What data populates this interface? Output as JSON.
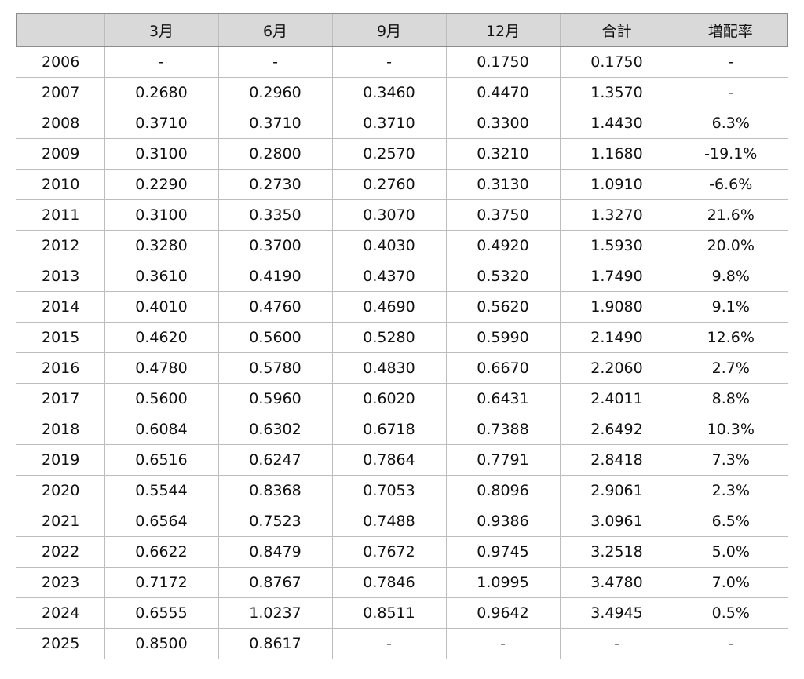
{
  "table": {
    "headers": [
      "",
      "3月",
      "6月",
      "9月",
      "12月",
      "合計",
      "増配率"
    ],
    "rows": [
      [
        "2006",
        "-",
        "-",
        "-",
        "0.1750",
        "0.1750",
        "-"
      ],
      [
        "2007",
        "0.2680",
        "0.2960",
        "0.3460",
        "0.4470",
        "1.3570",
        "-"
      ],
      [
        "2008",
        "0.3710",
        "0.3710",
        "0.3710",
        "0.3300",
        "1.4430",
        "6.3%"
      ],
      [
        "2009",
        "0.3100",
        "0.2800",
        "0.2570",
        "0.3210",
        "1.1680",
        "-19.1%"
      ],
      [
        "2010",
        "0.2290",
        "0.2730",
        "0.2760",
        "0.3130",
        "1.0910",
        "-6.6%"
      ],
      [
        "2011",
        "0.3100",
        "0.3350",
        "0.3070",
        "0.3750",
        "1.3270",
        "21.6%"
      ],
      [
        "2012",
        "0.3280",
        "0.3700",
        "0.4030",
        "0.4920",
        "1.5930",
        "20.0%"
      ],
      [
        "2013",
        "0.3610",
        "0.4190",
        "0.4370",
        "0.5320",
        "1.7490",
        "9.8%"
      ],
      [
        "2014",
        "0.4010",
        "0.4760",
        "0.4690",
        "0.5620",
        "1.9080",
        "9.1%"
      ],
      [
        "2015",
        "0.4620",
        "0.5600",
        "0.5280",
        "0.5990",
        "2.1490",
        "12.6%"
      ],
      [
        "2016",
        "0.4780",
        "0.5780",
        "0.4830",
        "0.6670",
        "2.2060",
        "2.7%"
      ],
      [
        "2017",
        "0.5600",
        "0.5960",
        "0.6020",
        "0.6431",
        "2.4011",
        "8.8%"
      ],
      [
        "2018",
        "0.6084",
        "0.6302",
        "0.6718",
        "0.7388",
        "2.6492",
        "10.3%"
      ],
      [
        "2019",
        "0.6516",
        "0.6247",
        "0.7864",
        "0.7791",
        "2.8418",
        "7.3%"
      ],
      [
        "2020",
        "0.5544",
        "0.8368",
        "0.7053",
        "0.8096",
        "2.9061",
        "2.3%"
      ],
      [
        "2021",
        "0.6564",
        "0.7523",
        "0.7488",
        "0.9386",
        "3.0961",
        "6.5%"
      ],
      [
        "2022",
        "0.6622",
        "0.8479",
        "0.7672",
        "0.9745",
        "3.2518",
        "5.0%"
      ],
      [
        "2023",
        "0.7172",
        "0.8767",
        "0.7846",
        "1.0995",
        "3.4780",
        "7.0%"
      ],
      [
        "2024",
        "0.6555",
        "1.0237",
        "0.8511",
        "0.9642",
        "3.4945",
        "0.5%"
      ],
      [
        "2025",
        "0.8500",
        "0.8617",
        "-",
        "-",
        "-",
        "-"
      ]
    ]
  }
}
